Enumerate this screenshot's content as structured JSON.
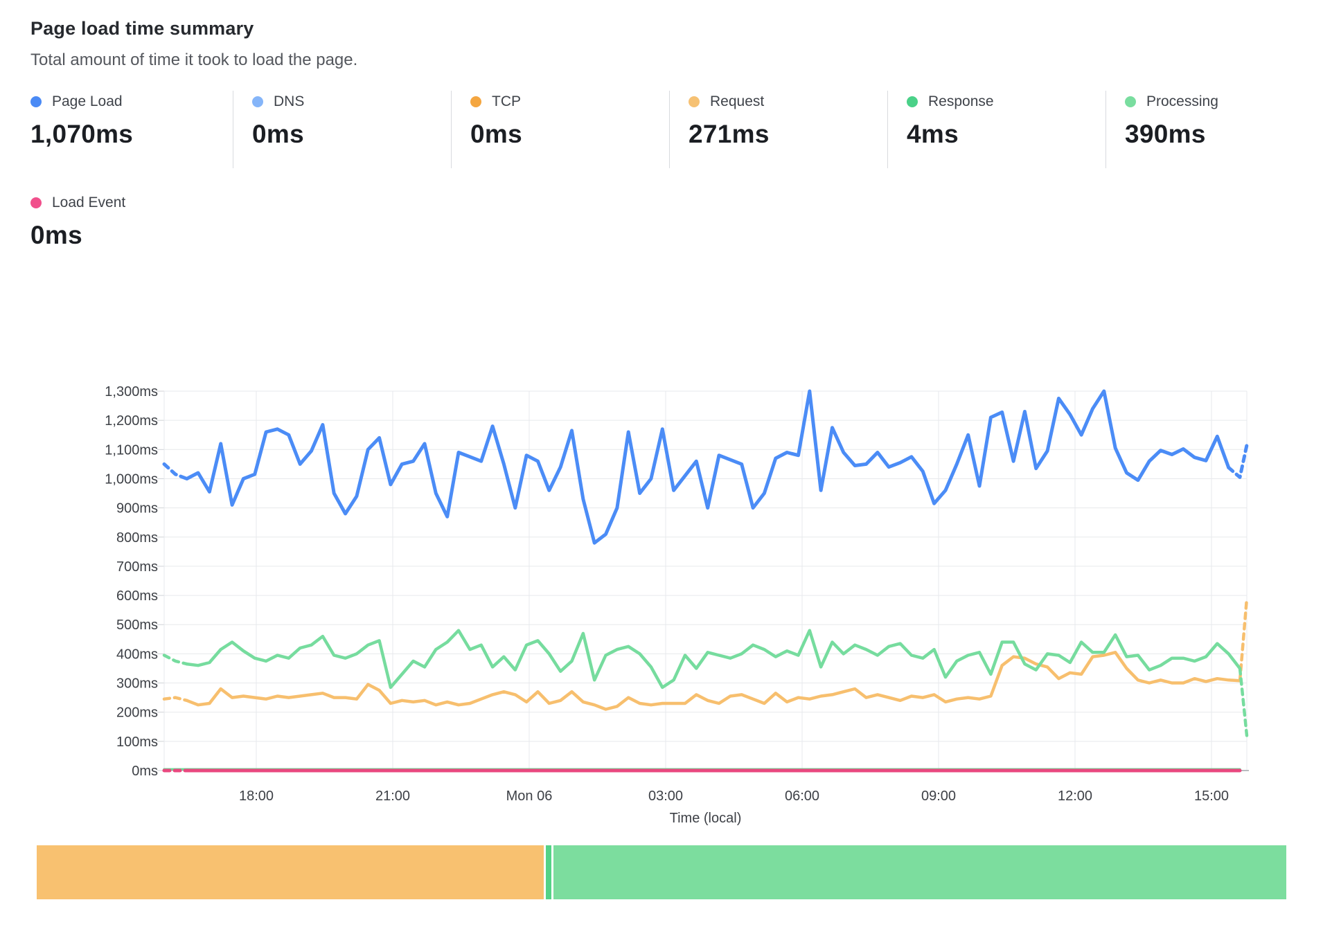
{
  "header": {
    "title": "Page load time summary",
    "subtitle": "Total amount of time it took to load the page."
  },
  "metrics": {
    "items": [
      {
        "label": "Page Load",
        "value": "1,070ms",
        "color": "#4a8af5"
      },
      {
        "label": "DNS",
        "value": "0ms",
        "color": "#85b5f9"
      },
      {
        "label": "TCP",
        "value": "0ms",
        "color": "#f4a640"
      },
      {
        "label": "Request",
        "value": "271ms",
        "color": "#f6c173"
      },
      {
        "label": "Response",
        "value": "4ms",
        "color": "#4ad188"
      },
      {
        "label": "Processing",
        "value": "390ms",
        "color": "#79dd9f"
      }
    ]
  },
  "load_event": {
    "label": "Load Event",
    "value": "0ms",
    "color": "#f1508c"
  },
  "chart_data": {
    "type": "line",
    "title": "",
    "xlabel": "Time (local)",
    "ylabel": "",
    "ylim": [
      0,
      1300
    ],
    "y_tick_step": 100,
    "y_unit": "ms",
    "grid": true,
    "x_tick_labels": [
      "18:00",
      "21:00",
      "Mon 06",
      "03:00",
      "06:00",
      "09:00",
      "12:00",
      "15:00"
    ],
    "series": [
      {
        "name": "Page Load",
        "color": "#4b8cf6",
        "width": 5,
        "dashed_head": 2,
        "dashed_tail": 1,
        "tail_ext": 1115,
        "values": [
          1050,
          1015,
          1000,
          1020,
          955,
          1120,
          910,
          1000,
          1015,
          1160,
          1170,
          1150,
          1050,
          1095,
          1185,
          950,
          880,
          940,
          1100,
          1140,
          980,
          1050,
          1060,
          1120,
          950,
          870,
          1090,
          1075,
          1060,
          1180,
          1050,
          900,
          1080,
          1060,
          960,
          1040,
          1165,
          930,
          780,
          810,
          900,
          1160,
          950,
          1000,
          1170,
          960,
          1010,
          1060,
          900,
          1080,
          1065,
          1050,
          900,
          950,
          1070,
          1090,
          1080,
          1300,
          960,
          1175,
          1090,
          1045,
          1050,
          1090,
          1040,
          1055,
          1075,
          1025,
          915,
          960,
          1050,
          1150,
          975,
          1210,
          1228,
          1060,
          1230,
          1035,
          1095,
          1275,
          1220,
          1150,
          1240,
          1300,
          1105,
          1020,
          995,
          1060,
          1097,
          1083,
          1102,
          1073,
          1062,
          1145,
          1038,
          1005
        ]
      },
      {
        "name": "Processing",
        "color": "#76dc9e",
        "width": 4.5,
        "dashed_head": 2,
        "dashed_tail": 0,
        "tail_ext": 120,
        "values": [
          395,
          375,
          365,
          360,
          370,
          415,
          440,
          410,
          385,
          375,
          395,
          385,
          420,
          430,
          460,
          395,
          385,
          400,
          430,
          445,
          285,
          330,
          375,
          355,
          415,
          440,
          480,
          415,
          430,
          355,
          390,
          345,
          430,
          445,
          400,
          340,
          375,
          470,
          310,
          395,
          415,
          425,
          400,
          355,
          285,
          310,
          395,
          350,
          405,
          395,
          385,
          400,
          430,
          415,
          390,
          410,
          395,
          480,
          355,
          440,
          400,
          430,
          415,
          395,
          425,
          435,
          395,
          385,
          415,
          320,
          375,
          395,
          405,
          330,
          440,
          440,
          365,
          345,
          400,
          395,
          370,
          440,
          405,
          405,
          465,
          390,
          395,
          345,
          360,
          385,
          385,
          375,
          390,
          435,
          400,
          350
        ]
      },
      {
        "name": "Request",
        "color": "#f7bf6e",
        "width": 4.5,
        "dashed_head": 2,
        "dashed_tail": 0,
        "tail_ext": 590,
        "values": [
          245,
          250,
          240,
          225,
          230,
          280,
          250,
          255,
          250,
          245,
          255,
          250,
          255,
          260,
          265,
          250,
          250,
          245,
          295,
          275,
          230,
          240,
          235,
          240,
          225,
          235,
          225,
          230,
          245,
          260,
          270,
          260,
          235,
          270,
          230,
          240,
          270,
          235,
          225,
          210,
          220,
          250,
          230,
          225,
          230,
          230,
          230,
          260,
          240,
          230,
          255,
          260,
          245,
          230,
          265,
          235,
          250,
          245,
          255,
          260,
          270,
          280,
          250,
          260,
          250,
          240,
          255,
          250,
          260,
          235,
          245,
          250,
          245,
          255,
          360,
          390,
          385,
          365,
          355,
          315,
          335,
          330,
          390,
          395,
          405,
          350,
          310,
          300,
          310,
          300,
          300,
          315,
          305,
          315,
          310,
          308
        ]
      },
      {
        "name": "Response",
        "color": "#6cdb98",
        "width": 3.5,
        "flat": 4,
        "count": 96
      },
      {
        "name": "Load Event",
        "color": "#e9487f",
        "width": 5,
        "flat": 0,
        "count": 96,
        "dashed_head": 2
      }
    ]
  },
  "bar": {
    "segments": [
      {
        "name": "request-share",
        "color": "#f8c170",
        "percent": 40.7
      },
      {
        "name": "response-share",
        "color": "#55d287",
        "percent": 0.55
      },
      {
        "name": "processing-share",
        "color": "#7cdd9e",
        "percent": 58.75
      }
    ]
  }
}
